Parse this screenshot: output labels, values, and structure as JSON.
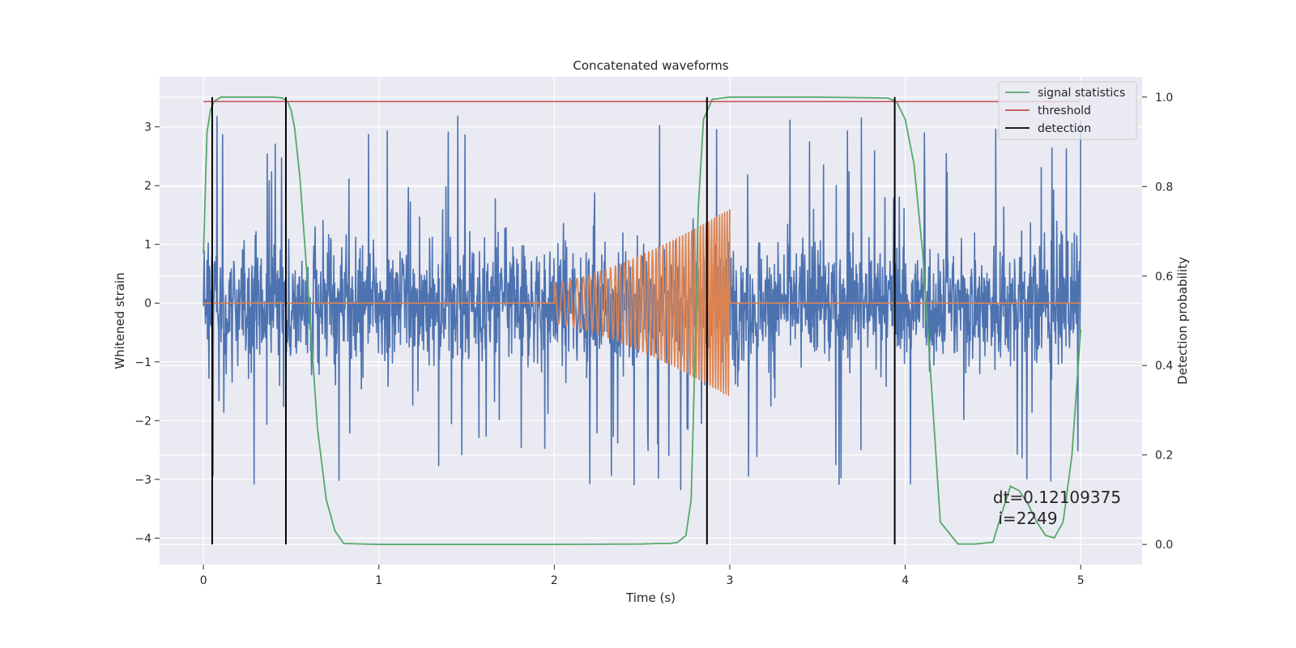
{
  "chart_data": {
    "type": "line",
    "title": "Concatenated waveforms",
    "xlabel": "Time (s)",
    "ylabel": "Whitened strain",
    "y2label": "Detection probability",
    "xlim": [
      -0.25,
      5.35
    ],
    "ylim": [
      -4.45,
      3.85
    ],
    "y2lim": [
      -0.045,
      1.045
    ],
    "x_ticks": [
      0,
      1,
      2,
      3,
      4,
      5
    ],
    "y_ticks": [
      -4,
      -3,
      -2,
      -1,
      0,
      1,
      2,
      3
    ],
    "y2_ticks": [
      0.0,
      0.2,
      0.4,
      0.6,
      0.8,
      1.0
    ],
    "y2_tick_labels": [
      "0.0",
      "0.2",
      "0.4",
      "0.6",
      "0.8",
      "1.0"
    ],
    "grid": true,
    "legend_position": "top-right",
    "colors": {
      "plot_background": "#eaeaf2",
      "grid": "#ffffff",
      "strain": "#4c72b0",
      "template": "#dd8452",
      "signal_statistics": "#55a868",
      "threshold": "#c44e52",
      "detection": "#000000"
    },
    "series": [
      {
        "name": "",
        "axis": "left",
        "kind": "noise",
        "x_range": [
          0,
          5
        ],
        "sample_count": 2200,
        "typical_min": -1.5,
        "typical_max": 1.6,
        "extreme_min": -3.4,
        "extreme_max": 3.3
      },
      {
        "name": "",
        "axis": "left",
        "kind": "chirp",
        "x_range": [
          0,
          5
        ],
        "chirp_start": 2.0,
        "chirp_end": 3.0,
        "start_amplitude": 0.35,
        "end_amplitude": 1.6,
        "start_frequency": 20,
        "end_frequency": 70
      },
      {
        "name": "signal statistics",
        "axis": "right",
        "x": [
          0,
          0.02,
          0.04,
          0.06,
          0.1,
          0.2,
          0.3,
          0.4,
          0.45,
          0.48,
          0.5,
          0.52,
          0.55,
          0.6,
          0.65,
          0.7,
          0.75,
          0.8,
          1.0,
          1.5,
          2.0,
          2.5,
          2.6,
          2.65,
          2.7,
          2.75,
          2.78,
          2.8,
          2.82,
          2.85,
          2.9,
          3.0,
          3.5,
          3.9,
          3.95,
          4.0,
          4.05,
          4.1,
          4.15,
          4.2,
          4.3,
          4.4,
          4.5,
          4.55,
          4.6,
          4.65,
          4.7,
          4.75,
          4.8,
          4.85,
          4.9,
          4.95,
          5.0
        ],
        "values": [
          0.65,
          0.92,
          0.97,
          0.99,
          1.0,
          1.0,
          1.0,
          1.0,
          0.998,
          0.99,
          0.97,
          0.93,
          0.82,
          0.55,
          0.26,
          0.1,
          0.03,
          0.002,
          0.0,
          0.0,
          0.0,
          0.001,
          0.002,
          0.002,
          0.004,
          0.02,
          0.1,
          0.4,
          0.75,
          0.95,
          0.995,
          1.0,
          1.0,
          0.998,
          0.99,
          0.95,
          0.85,
          0.65,
          0.35,
          0.05,
          0.001,
          0.001,
          0.005,
          0.07,
          0.13,
          0.12,
          0.09,
          0.05,
          0.02,
          0.015,
          0.05,
          0.2,
          0.48
        ]
      },
      {
        "name": "threshold",
        "axis": "right",
        "x": [
          0,
          5
        ],
        "values": [
          0.99,
          0.99
        ]
      },
      {
        "name": "detection",
        "axis": "right",
        "kind": "vertical_lines",
        "x": [
          0.05,
          0.47,
          2.87,
          3.94
        ],
        "y_range": [
          0,
          1
        ]
      }
    ],
    "annotations": [
      {
        "text": "dt=0.12109375",
        "x": 4.5,
        "y": -3.4
      },
      {
        "text": "i=2249",
        "x": 4.53,
        "y": -3.76
      }
    ]
  }
}
